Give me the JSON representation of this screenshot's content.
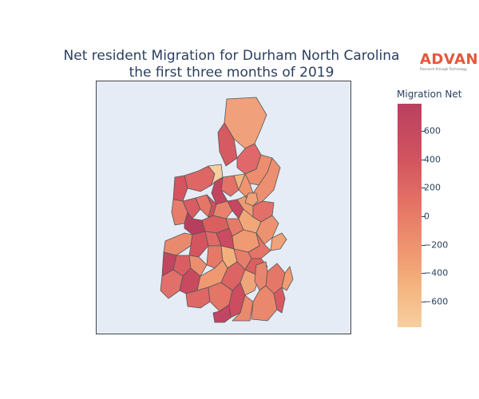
{
  "title_lines": [
    "Net resident Migration for Durham North Carolina",
    "the first three months of 2019"
  ],
  "logo": {
    "word": "ADVAN",
    "tagline": "Research through Technology",
    "color": "#e8553a"
  },
  "colorbar": {
    "title": "Migration Net",
    "range": [
      -780,
      790
    ],
    "ticks": [
      {
        "value": 600,
        "label": "600"
      },
      {
        "value": 400,
        "label": "400"
      },
      {
        "value": 200,
        "label": "200"
      },
      {
        "value": 0,
        "label": "0"
      },
      {
        "value": -200,
        "label": "−200"
      },
      {
        "value": -400,
        "label": "−400"
      },
      {
        "value": -600,
        "label": "−600"
      }
    ],
    "colorscale": [
      "#f6cfa0",
      "#f4b47e",
      "#ee9570",
      "#e57365",
      "#d2545f",
      "#b9405f"
    ]
  },
  "map": {
    "background": "#e5ecf6",
    "border": "#444444",
    "region_stroke": "#555555"
  }
}
